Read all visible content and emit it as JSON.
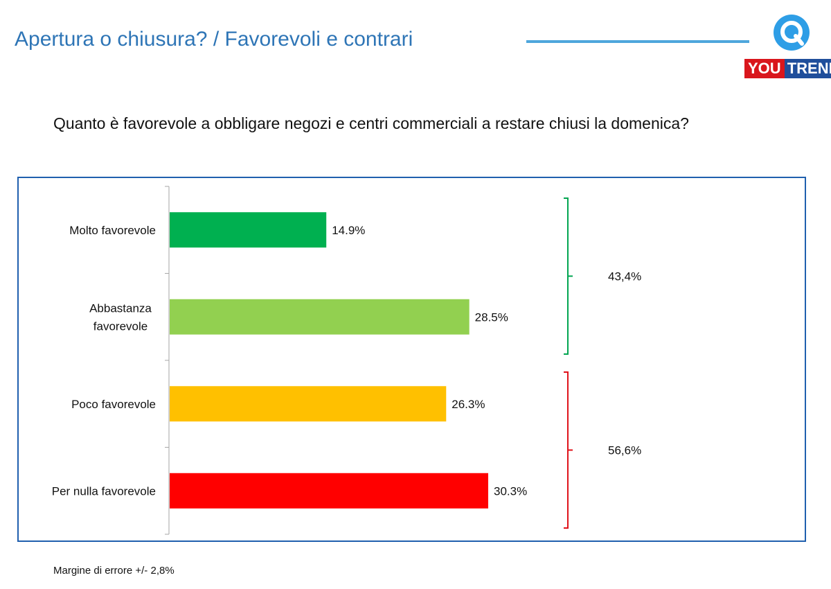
{
  "header": {
    "title": "Apertura o chiusura? / Favorevoli e contrari",
    "logo_you": "YOU",
    "logo_trend": "TREND"
  },
  "question": "Quanto è favorevole a obbligare negozi e centri commerciali a restare chiusi la domenica?",
  "footnote": "Margine di errore +/- 2,8%",
  "colors": {
    "title": "#2e75b6",
    "frame": "#1f5fae",
    "favorable_bracket": "#00a550",
    "unfavorable_bracket": "#e0121a"
  },
  "chart_data": {
    "type": "bar",
    "orientation": "horizontal",
    "categories": [
      [
        "Molto favorevole"
      ],
      [
        "Abbastanza",
        "favorevole"
      ],
      [
        "Poco favorevole"
      ],
      [
        "Per nulla favorevole"
      ]
    ],
    "values": [
      14.9,
      28.5,
      26.3,
      30.3
    ],
    "value_labels": [
      "14.9%",
      "28.5%",
      "26.3%",
      "30.3%"
    ],
    "bar_colors": [
      "#00b050",
      "#92d050",
      "#ffc000",
      "#ff0000"
    ],
    "xlim": [
      0,
      30.3
    ],
    "groups": [
      {
        "label": "43,4%",
        "from": 0,
        "to": 1,
        "color": "#00a550"
      },
      {
        "label": "56,6%",
        "from": 2,
        "to": 3,
        "color": "#e0121a"
      }
    ]
  }
}
